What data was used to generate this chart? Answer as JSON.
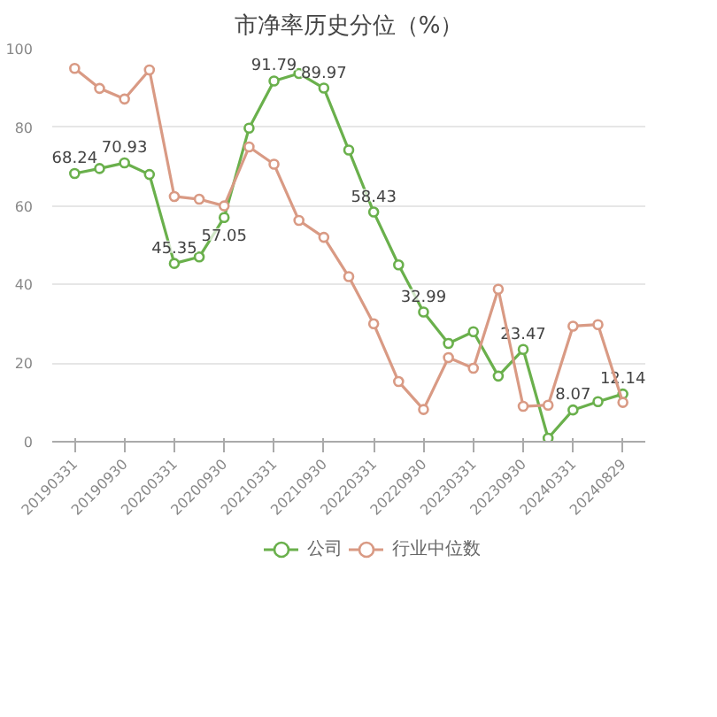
{
  "chart_data": {
    "type": "line",
    "title": "市净率历史分位（%）",
    "categories": [
      "20190331",
      null,
      "20190930",
      null,
      "20200331",
      null,
      "20200930",
      null,
      "20210331",
      null,
      "20210930",
      null,
      "20220331",
      null,
      "20220930",
      null,
      "20230331",
      null,
      "20230930",
      null,
      "20240331",
      null,
      "20240829"
    ],
    "series": [
      {
        "name": "公司",
        "color": "#6ab04c",
        "values": [
          68.24,
          69.5,
          70.93,
          68,
          45.35,
          47,
          57.05,
          79.8,
          91.79,
          93.7,
          89.97,
          74.2,
          58.43,
          45,
          32.99,
          25,
          28,
          16.7,
          23.47,
          0.9,
          8.07,
          10.2,
          12.14
        ],
        "value_labels": [
          "68.24",
          null,
          "70.93",
          null,
          "45.35",
          null,
          "57.05",
          null,
          "91.79",
          null,
          "89.97",
          null,
          "58.43",
          null,
          "32.99",
          null,
          null,
          null,
          "23.47",
          null,
          "8.07",
          null,
          "12.14"
        ]
      },
      {
        "name": "行业中位数",
        "color": "#d99a84",
        "values": [
          95,
          89.9,
          87.2,
          94.6,
          62.4,
          61.7,
          60,
          75,
          70.6,
          56.3,
          52,
          42,
          30,
          15.3,
          8.2,
          21.4,
          18.7,
          38.8,
          9,
          9.3,
          29.4,
          29.8,
          10
        ]
      }
    ],
    "ylim": [
      0,
      100
    ],
    "yticks": [
      0,
      20,
      40,
      60,
      80,
      100
    ],
    "grid": "y",
    "legend": "bottom",
    "marker": "circle",
    "line_style": "solid"
  }
}
